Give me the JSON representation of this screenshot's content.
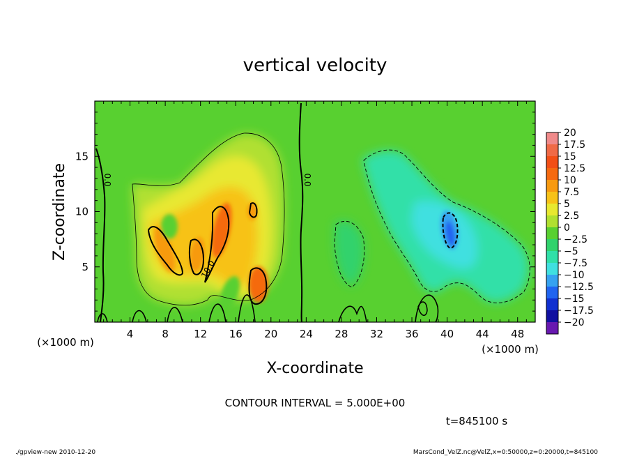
{
  "chart_data": {
    "type": "heatmap",
    "title": "vertical velocity",
    "xlabel": "X-coordinate",
    "ylabel": "Z-coordinate",
    "x_unit": "(×1000 m)",
    "y_unit": "(×1000 m)",
    "xlim": [
      0,
      50
    ],
    "ylim": [
      0,
      20
    ],
    "x_ticks": [
      4,
      8,
      12,
      16,
      20,
      24,
      28,
      32,
      36,
      40,
      44,
      48
    ],
    "y_ticks": [
      5,
      10,
      15
    ],
    "colorbar": {
      "levels": [
        20,
        17.5,
        15,
        12.5,
        10,
        7.5,
        5,
        2.5,
        0,
        -2.5,
        -5,
        -7.5,
        -10,
        -12.5,
        -15,
        -17.5,
        -20
      ],
      "colors": [
        "#f08a8a",
        "#f06a46",
        "#f24f16",
        "#f56a10",
        "#f79a10",
        "#f7c218",
        "#e8e830",
        "#b0e030",
        "#58d030",
        "#30d26c",
        "#30e0a8",
        "#40e0e0",
        "#36a2f0",
        "#2064f0",
        "#1030d0",
        "#1010a0",
        "#6818b0"
      ]
    },
    "contour_labels": [
      "0.0",
      "0.0",
      "10.0"
    ],
    "contour_interval": "CONTOUR INTERVAL = 5.000E+00",
    "time": "t=845100 s",
    "features": [
      {
        "kind": "updraft",
        "x": 14.5,
        "z": 8.5,
        "value": 12
      },
      {
        "kind": "updraft",
        "x": 18.5,
        "z": 3.5,
        "value": 12
      },
      {
        "kind": "updraft",
        "x": 7.5,
        "z": 7,
        "value": 10
      },
      {
        "kind": "downdraft",
        "x": 40,
        "z": 8,
        "value": -12
      }
    ]
  },
  "footer": {
    "left": "./gpview-new   2010-12-20",
    "right": "MarsCond_VelZ.nc@VelZ,x=0:50000,z=0:20000,t=845100"
  }
}
